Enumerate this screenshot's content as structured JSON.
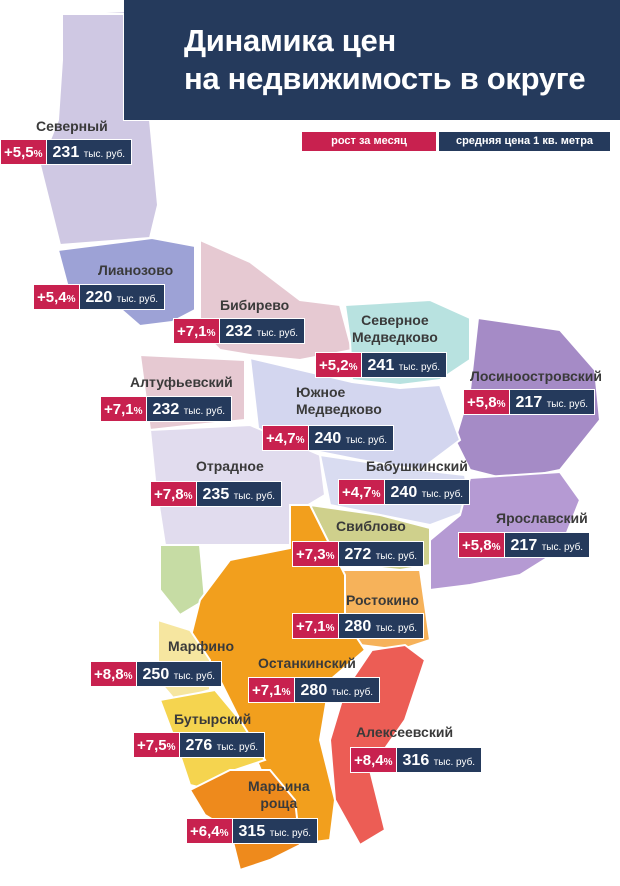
{
  "title": {
    "line1": "Динамика цен",
    "line2": "на недвижимость в округе"
  },
  "legend": {
    "growth": "рост за месяц",
    "price": "средняя цена 1 кв. метра"
  },
  "colors": {
    "growth_badge": "#c8214f",
    "price_badge": "#253a5c",
    "header": "#253a5c"
  },
  "districts": [
    {
      "name": "Северный",
      "growth": "+5,5",
      "pct": "%",
      "price": "231",
      "unit": "тыс. руб."
    },
    {
      "name": "Лианозово",
      "growth": "+5,4",
      "pct": "%",
      "price": "220",
      "unit": "тыс. руб."
    },
    {
      "name": "Бибирево",
      "growth": "+7,1",
      "pct": "%",
      "price": "232",
      "unit": "тыс. руб."
    },
    {
      "name": "Северное Медведково",
      "name1": "Северное",
      "name2": "Медведково",
      "growth": "+5,2",
      "pct": "%",
      "price": "241",
      "unit": "тыс. руб."
    },
    {
      "name": "Лосиноостровский",
      "growth": "+5,8",
      "pct": "%",
      "price": "217",
      "unit": "тыс. руб."
    },
    {
      "name": "Алтуфьевский",
      "growth": "+7,1",
      "pct": "%",
      "price": "232",
      "unit": "тыс. руб."
    },
    {
      "name": "Южное Медведково",
      "name1": "Южное",
      "name2": "Медведково",
      "growth": "+4,7",
      "pct": "%",
      "price": "240",
      "unit": "тыс. руб."
    },
    {
      "name": "Отрадное",
      "growth": "+7,8",
      "pct": "%",
      "price": "235",
      "unit": "тыс. руб."
    },
    {
      "name": "Бабушкинский",
      "growth": "+4,7",
      "pct": "%",
      "price": "240",
      "unit": "тыс. руб."
    },
    {
      "name": "Ярославский",
      "growth": "+5,8",
      "pct": "%",
      "price": "217",
      "unit": "тыс. руб."
    },
    {
      "name": "Свиблово",
      "growth": "+7,3",
      "pct": "%",
      "price": "272",
      "unit": "тыс. руб."
    },
    {
      "name": "Ростокино",
      "growth": "+7,1",
      "pct": "%",
      "price": "280",
      "unit": "тыс. руб."
    },
    {
      "name": "Марфино",
      "growth": "+8,8",
      "pct": "%",
      "price": "250",
      "unit": "тыс. руб."
    },
    {
      "name": "Останкинский",
      "growth": "+7,1",
      "pct": "%",
      "price": "280",
      "unit": "тыс. руб."
    },
    {
      "name": "Бутырский",
      "growth": "+7,5",
      "pct": "%",
      "price": "276",
      "unit": "тыс. руб."
    },
    {
      "name": "Алексеевский",
      "growth": "+8,4",
      "pct": "%",
      "price": "316",
      "unit": "тыс. руб."
    },
    {
      "name": "Марьина роща",
      "name1": "Марьина",
      "name2": "роща",
      "growth": "+6,4",
      "pct": "%",
      "price": "315",
      "unit": "тыс. руб."
    }
  ]
}
